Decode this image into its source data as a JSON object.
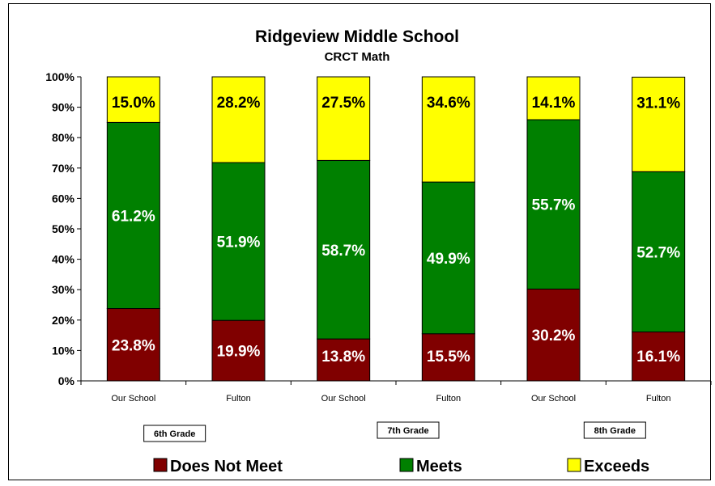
{
  "chart_data": {
    "type": "bar",
    "stacked": true,
    "title": "Ridgeview Middle School",
    "subtitle": "CRCT Math",
    "categories": [
      "Our School",
      "Fulton",
      "Our School",
      "Fulton",
      "Our School",
      "Fulton"
    ],
    "groups": [
      "6th Grade",
      "7th Grade",
      "8th Grade"
    ],
    "series": [
      {
        "name": "Does Not Meet",
        "color": "#800000",
        "values": [
          23.8,
          19.9,
          13.8,
          15.5,
          30.2,
          16.1
        ],
        "labels": [
          "23.8%",
          "19.9%",
          "13.8%",
          "15.5%",
          "30.2%",
          "16.1%"
        ]
      },
      {
        "name": "Meets",
        "color": "#008000",
        "values": [
          61.2,
          51.9,
          58.7,
          49.9,
          55.7,
          52.7
        ],
        "labels": [
          "61.2%",
          "51.9%",
          "58.7%",
          "49.9%",
          "55.7%",
          "52.7%"
        ]
      },
      {
        "name": "Exceeds",
        "color": "#ffff00",
        "values": [
          15.0,
          28.2,
          27.5,
          34.6,
          14.1,
          31.1
        ],
        "labels": [
          "15.0%",
          "28.2%",
          "27.5%",
          "34.6%",
          "14.1%",
          "31.1%"
        ]
      }
    ],
    "ylim": [
      0,
      100
    ],
    "yticks": [
      "0%",
      "10%",
      "20%",
      "30%",
      "40%",
      "50%",
      "60%",
      "70%",
      "80%",
      "90%",
      "100%"
    ],
    "grid": false,
    "legend_position": "bottom"
  }
}
